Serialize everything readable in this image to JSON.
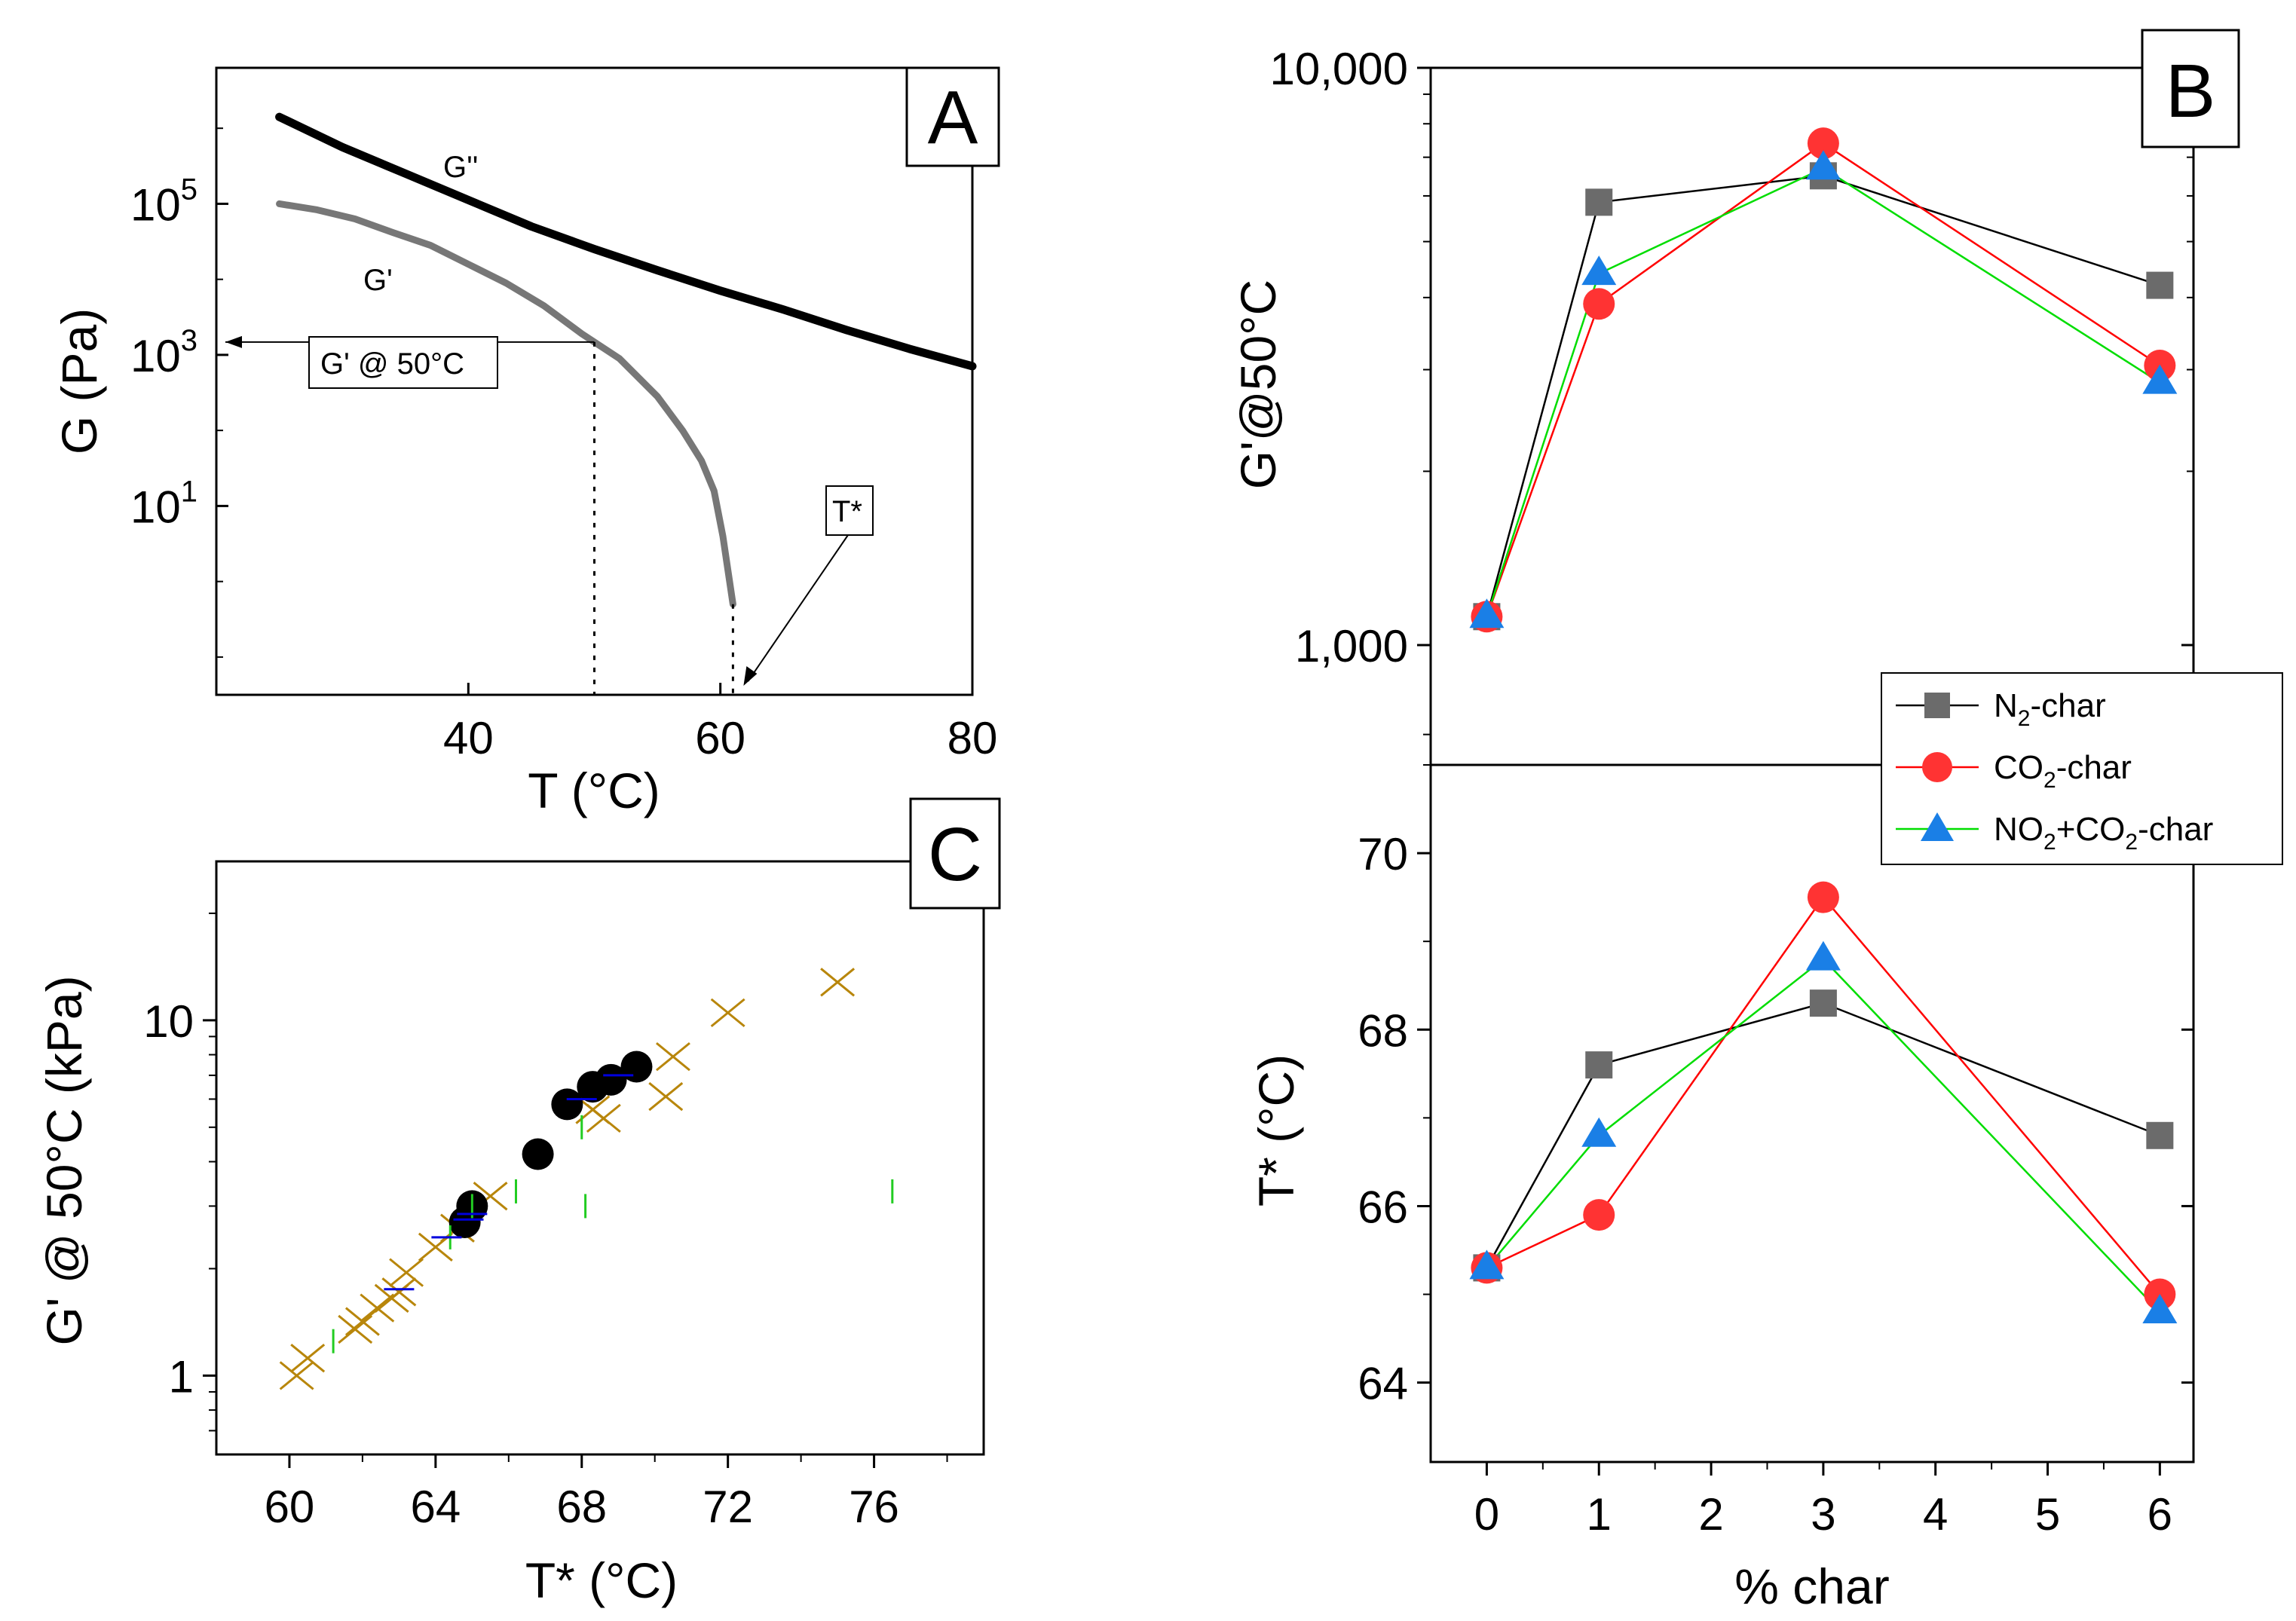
{
  "chart_data": [
    {
      "panel": "A",
      "type": "line",
      "xlabel": "T (°C)",
      "ylabel": "G (Pa)",
      "xlim": [
        20,
        80
      ],
      "ylim_log10": [
        -1.5,
        6.8
      ],
      "yscale": "log",
      "x_ticks": [
        40,
        60,
        80
      ],
      "y_ticks": [
        {
          "label": "10",
          "exp": "5",
          "log": 5
        },
        {
          "label": "10",
          "exp": "3",
          "log": 3
        },
        {
          "label": "10",
          "exp": "1",
          "log": 1
        }
      ],
      "series": [
        {
          "name": "G''",
          "color": "#000000",
          "x": [
            25,
            30,
            35,
            40,
            45,
            50,
            55,
            60,
            65,
            70,
            75,
            80
          ],
          "log_y": [
            6.15,
            5.75,
            5.4,
            5.05,
            4.7,
            4.4,
            4.12,
            3.85,
            3.6,
            3.33,
            3.08,
            2.85
          ]
        },
        {
          "name": "G'",
          "color": "#777777",
          "x": [
            25,
            28,
            31,
            34,
            37,
            40,
            43,
            46,
            49,
            52,
            55,
            57,
            58.5,
            59.5,
            60.2,
            60.6,
            61.0
          ],
          "log_y": [
            5.0,
            4.92,
            4.8,
            4.62,
            4.45,
            4.2,
            3.95,
            3.65,
            3.28,
            2.95,
            2.45,
            2.0,
            1.6,
            1.2,
            0.6,
            0.15,
            -0.3
          ]
        }
      ],
      "annotations": {
        "g_double_prime": "G''",
        "g_prime": "G'",
        "g_at_50": "G' @ 50°C",
        "t_star": "T*"
      },
      "panel_label": "A"
    },
    {
      "panel": "B-top",
      "type": "line",
      "xlabel": "% char",
      "ylabel": "G'@50°C",
      "yscale": "log",
      "xlim": [
        -0.5,
        6.3
      ],
      "ylim": [
        620,
        10000
      ],
      "x": [
        0,
        1,
        3,
        6
      ],
      "x_ticks": [
        0,
        1,
        2,
        3,
        4,
        5,
        6
      ],
      "y_ticks": [
        {
          "label": "10,000",
          "value": 10000
        },
        {
          "label": "1,000",
          "value": 1000
        }
      ],
      "series": [
        {
          "name": "N2-char",
          "color": "#000000",
          "marker": "square",
          "marker_color": "#6b6b6b",
          "values": [
            1120,
            5850,
            6500,
            4200
          ]
        },
        {
          "name": "CO2-char",
          "color": "#ff0000",
          "marker": "circle",
          "marker_color": "#ff3333",
          "values": [
            1120,
            3900,
            7400,
            3050
          ]
        },
        {
          "name": "NO2+CO2-char",
          "color": "#00dd00",
          "marker": "triangle",
          "marker_color": "#1a7fe6",
          "values": [
            1120,
            4400,
            6700,
            2850
          ]
        }
      ],
      "panel_label": "B"
    },
    {
      "panel": "B-bottom",
      "type": "line",
      "xlabel": "% char",
      "ylabel": "T* (°C)",
      "xlim": [
        -0.5,
        6.3
      ],
      "ylim": [
        63.1,
        71.0
      ],
      "x": [
        0,
        1,
        3,
        6
      ],
      "x_ticks": [
        0,
        1,
        2,
        3,
        4,
        5,
        6
      ],
      "y_ticks": [
        64,
        66,
        68,
        70
      ],
      "series": [
        {
          "name": "N2-char",
          "values": [
            65.3,
            67.6,
            68.3,
            66.8
          ]
        },
        {
          "name": "CO2-char",
          "values": [
            65.3,
            65.9,
            69.5,
            65.0
          ]
        },
        {
          "name": "NO2+CO2-char",
          "values": [
            65.3,
            66.8,
            68.8,
            64.8
          ]
        }
      ]
    },
    {
      "panel": "C",
      "type": "scatter",
      "xlabel": "T* (°C)",
      "ylabel": "G' @ 50°C (kPa)",
      "yscale": "log",
      "xlim": [
        58,
        79
      ],
      "ylim": [
        0.6,
        28
      ],
      "x_ticks": [
        60,
        64,
        68,
        72,
        76
      ],
      "y_ticks": [
        {
          "label": "10",
          "value": 10
        },
        {
          "label": "1",
          "value": 1
        }
      ],
      "series": [
        {
          "name": "crosses",
          "marker": "x",
          "color": "#b8860b",
          "x": [
            60.2,
            60.5,
            61.8,
            62.0,
            62.4,
            62.8,
            63.0,
            63.2,
            64.0,
            64.6,
            65.5,
            68.3,
            68.6,
            70.3,
            70.5,
            72.0,
            75.0
          ],
          "y": [
            1.0,
            1.12,
            1.35,
            1.42,
            1.55,
            1.65,
            1.72,
            1.95,
            2.3,
            2.6,
            3.2,
            5.6,
            5.3,
            6.1,
            7.9,
            10.5,
            12.8
          ]
        },
        {
          "name": "dots",
          "marker": "circle",
          "color": "#000000",
          "x": [
            64.8,
            65.0,
            66.8,
            67.6,
            68.3,
            68.8,
            69.5
          ],
          "y": [
            2.7,
            3.0,
            4.2,
            5.8,
            6.5,
            6.8,
            7.4
          ]
        },
        {
          "name": "vertical-dashes",
          "marker": "vbar",
          "color": "#22cc22",
          "x": [
            61.2,
            64.4,
            66.2,
            68.0,
            68.1,
            76.5,
            65.0
          ],
          "y": [
            1.25,
            2.45,
            3.3,
            5.0,
            3.0,
            3.3,
            3.0
          ]
        },
        {
          "name": "horizontal-dashes",
          "marker": "hbar",
          "color": "#0000dd",
          "x": [
            63.0,
            64.3,
            64.9,
            65.0,
            68.0,
            69.0
          ],
          "y": [
            1.75,
            2.45,
            2.75,
            2.85,
            6.0,
            7.0
          ]
        }
      ],
      "panel_label": "C"
    }
  ],
  "legend": {
    "items": [
      {
        "base": "N",
        "sub": "2",
        "rest": "-char"
      },
      {
        "base": "CO",
        "sub": "2",
        "rest": "-char"
      },
      {
        "base": "NO",
        "sub": "2",
        "mid": "+CO",
        "sub2": "2",
        "rest": "-char"
      }
    ]
  }
}
